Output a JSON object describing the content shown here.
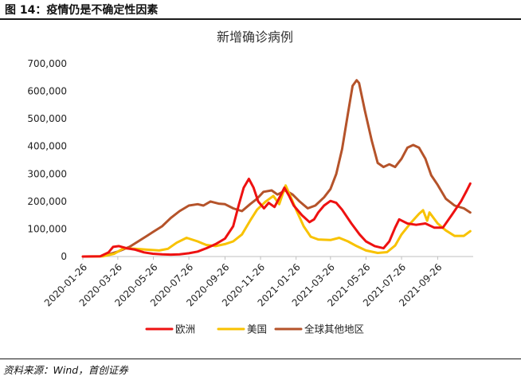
{
  "figure": {
    "caption": "图 14：疫情仍是不确定性因素",
    "source": "资料来源：Wind，首创证券"
  },
  "colors": {
    "europe": "#ee1111",
    "usa": "#f8c200",
    "rest": "#b5532a",
    "axis": "#bfbfbf"
  },
  "chart_data": {
    "type": "line",
    "title": "新增确诊病例",
    "xlabel": "",
    "ylabel": "",
    "ylim": [
      0,
      700000
    ],
    "yticks": [
      0,
      100000,
      200000,
      300000,
      400000,
      500000,
      600000,
      700000
    ],
    "ytick_labels": [
      "0",
      "100,000",
      "200,000",
      "300,000",
      "400,000",
      "500,000",
      "600,000",
      "700,000"
    ],
    "xlim": [
      "2020-01-26",
      "2021-11-26"
    ],
    "xtick_labels": [
      "2020-01-26",
      "2020-03-26",
      "2020-05-26",
      "2020-07-26",
      "2020-09-26",
      "2020-11-26",
      "2021-01-26",
      "2021-03-26",
      "2021-05-26",
      "2021-07-26",
      "2021-09-26"
    ],
    "grid": false,
    "legend_position": "bottom",
    "series": [
      {
        "name": "欧洲",
        "color_key": "europe",
        "points": [
          [
            "2020-01-26",
            0
          ],
          [
            "2020-02-25",
            1000
          ],
          [
            "2020-03-10",
            15000
          ],
          [
            "2020-03-18",
            35000
          ],
          [
            "2020-03-28",
            38000
          ],
          [
            "2020-04-10",
            30000
          ],
          [
            "2020-04-25",
            25000
          ],
          [
            "2020-05-10",
            15000
          ],
          [
            "2020-05-25",
            10000
          ],
          [
            "2020-06-10",
            8000
          ],
          [
            "2020-06-25",
            7000
          ],
          [
            "2020-07-10",
            8000
          ],
          [
            "2020-07-26",
            12000
          ],
          [
            "2020-08-10",
            18000
          ],
          [
            "2020-08-25",
            30000
          ],
          [
            "2020-09-10",
            45000
          ],
          [
            "2020-09-26",
            65000
          ],
          [
            "2020-10-10",
            110000
          ],
          [
            "2020-10-20",
            190000
          ],
          [
            "2020-10-28",
            250000
          ],
          [
            "2020-11-06",
            282000
          ],
          [
            "2020-11-14",
            250000
          ],
          [
            "2020-11-22",
            200000
          ],
          [
            "2020-12-02",
            175000
          ],
          [
            "2020-12-10",
            195000
          ],
          [
            "2020-12-20",
            180000
          ],
          [
            "2020-12-30",
            220000
          ],
          [
            "2021-01-06",
            250000
          ],
          [
            "2021-01-14",
            220000
          ],
          [
            "2021-01-22",
            185000
          ],
          [
            "2021-02-05",
            150000
          ],
          [
            "2021-02-18",
            125000
          ],
          [
            "2021-02-26",
            135000
          ],
          [
            "2021-03-05",
            160000
          ],
          [
            "2021-03-15",
            185000
          ],
          [
            "2021-03-26",
            202000
          ],
          [
            "2021-04-05",
            195000
          ],
          [
            "2021-04-15",
            170000
          ],
          [
            "2021-05-01",
            120000
          ],
          [
            "2021-05-15",
            80000
          ],
          [
            "2021-05-26",
            55000
          ],
          [
            "2021-06-10",
            38000
          ],
          [
            "2021-06-25",
            30000
          ],
          [
            "2021-07-05",
            55000
          ],
          [
            "2021-07-15",
            105000
          ],
          [
            "2021-07-22",
            135000
          ],
          [
            "2021-08-05",
            120000
          ],
          [
            "2021-08-20",
            115000
          ],
          [
            "2021-09-05",
            120000
          ],
          [
            "2021-09-20",
            105000
          ],
          [
            "2021-10-05",
            105000
          ],
          [
            "2021-10-20",
            150000
          ],
          [
            "2021-11-05",
            200000
          ],
          [
            "2021-11-15",
            240000
          ],
          [
            "2021-11-21",
            265000
          ]
        ]
      },
      {
        "name": "美国",
        "color_key": "usa",
        "points": [
          [
            "2020-01-26",
            0
          ],
          [
            "2020-03-01",
            1000
          ],
          [
            "2020-03-20",
            10000
          ],
          [
            "2020-04-05",
            30000
          ],
          [
            "2020-04-25",
            28000
          ],
          [
            "2020-05-15",
            25000
          ],
          [
            "2020-06-05",
            22000
          ],
          [
            "2020-06-20",
            28000
          ],
          [
            "2020-07-05",
            50000
          ],
          [
            "2020-07-22",
            68000
          ],
          [
            "2020-08-10",
            55000
          ],
          [
            "2020-08-25",
            42000
          ],
          [
            "2020-09-10",
            38000
          ],
          [
            "2020-09-26",
            45000
          ],
          [
            "2020-10-10",
            55000
          ],
          [
            "2020-10-25",
            80000
          ],
          [
            "2020-11-08",
            130000
          ],
          [
            "2020-11-20",
            170000
          ],
          [
            "2020-12-05",
            200000
          ],
          [
            "2020-12-18",
            220000
          ],
          [
            "2020-12-28",
            190000
          ],
          [
            "2021-01-08",
            258000
          ],
          [
            "2021-01-16",
            220000
          ],
          [
            "2021-01-26",
            170000
          ],
          [
            "2021-02-08",
            110000
          ],
          [
            "2021-02-20",
            72000
          ],
          [
            "2021-03-05",
            62000
          ],
          [
            "2021-03-26",
            60000
          ],
          [
            "2021-04-10",
            68000
          ],
          [
            "2021-04-25",
            55000
          ],
          [
            "2021-05-10",
            38000
          ],
          [
            "2021-05-26",
            22000
          ],
          [
            "2021-06-15",
            13000
          ],
          [
            "2021-07-01",
            16000
          ],
          [
            "2021-07-15",
            40000
          ],
          [
            "2021-07-26",
            80000
          ],
          [
            "2021-08-10",
            120000
          ],
          [
            "2021-08-25",
            155000
          ],
          [
            "2021-09-01",
            168000
          ],
          [
            "2021-09-08",
            130000
          ],
          [
            "2021-09-12",
            160000
          ],
          [
            "2021-09-26",
            120000
          ],
          [
            "2021-10-10",
            95000
          ],
          [
            "2021-10-25",
            75000
          ],
          [
            "2021-11-10",
            75000
          ],
          [
            "2021-11-21",
            92000
          ]
        ]
      },
      {
        "name": "全球其他地区",
        "color_key": "rest",
        "points": [
          [
            "2020-03-01",
            2000
          ],
          [
            "2020-03-26",
            18000
          ],
          [
            "2020-04-15",
            35000
          ],
          [
            "2020-04-30",
            55000
          ],
          [
            "2020-05-15",
            75000
          ],
          [
            "2020-05-26",
            90000
          ],
          [
            "2020-06-10",
            110000
          ],
          [
            "2020-06-25",
            140000
          ],
          [
            "2020-07-10",
            165000
          ],
          [
            "2020-07-26",
            185000
          ],
          [
            "2020-08-10",
            190000
          ],
          [
            "2020-08-20",
            185000
          ],
          [
            "2020-09-01",
            200000
          ],
          [
            "2020-09-15",
            192000
          ],
          [
            "2020-09-26",
            190000
          ],
          [
            "2020-10-10",
            175000
          ],
          [
            "2020-10-25",
            165000
          ],
          [
            "2020-11-08",
            190000
          ],
          [
            "2020-11-20",
            210000
          ],
          [
            "2020-12-01",
            235000
          ],
          [
            "2020-12-15",
            240000
          ],
          [
            "2020-12-25",
            225000
          ],
          [
            "2021-01-08",
            240000
          ],
          [
            "2021-01-20",
            225000
          ],
          [
            "2021-02-01",
            200000
          ],
          [
            "2021-02-15",
            175000
          ],
          [
            "2021-02-28",
            185000
          ],
          [
            "2021-03-15",
            215000
          ],
          [
            "2021-03-26",
            245000
          ],
          [
            "2021-04-05",
            300000
          ],
          [
            "2021-04-15",
            390000
          ],
          [
            "2021-04-25",
            520000
          ],
          [
            "2021-05-03",
            620000
          ],
          [
            "2021-05-10",
            640000
          ],
          [
            "2021-05-14",
            630000
          ],
          [
            "2021-05-24",
            530000
          ],
          [
            "2021-06-05",
            420000
          ],
          [
            "2021-06-15",
            340000
          ],
          [
            "2021-06-25",
            325000
          ],
          [
            "2021-07-05",
            335000
          ],
          [
            "2021-07-15",
            325000
          ],
          [
            "2021-07-26",
            355000
          ],
          [
            "2021-08-05",
            395000
          ],
          [
            "2021-08-15",
            405000
          ],
          [
            "2021-08-25",
            395000
          ],
          [
            "2021-09-05",
            355000
          ],
          [
            "2021-09-15",
            295000
          ],
          [
            "2021-09-26",
            260000
          ],
          [
            "2021-10-10",
            210000
          ],
          [
            "2021-10-25",
            185000
          ],
          [
            "2021-11-10",
            175000
          ],
          [
            "2021-11-21",
            160000
          ]
        ]
      }
    ]
  }
}
